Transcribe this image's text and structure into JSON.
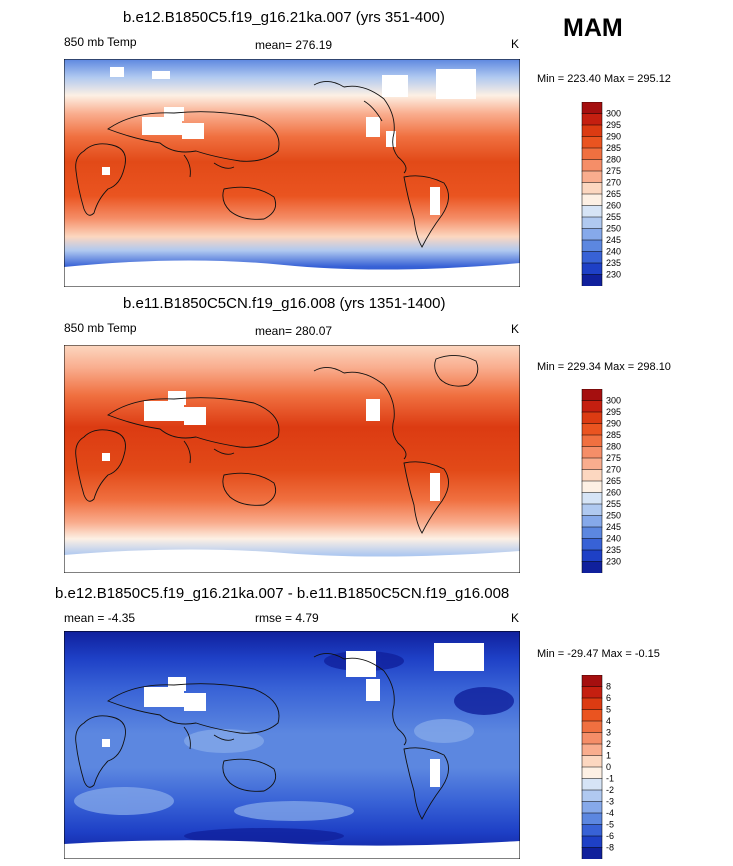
{
  "season": "MAM",
  "chart_data": [
    {
      "type": "heatmap",
      "title": "b.e12.B1850C5.f19_g16.21ka.007 (yrs 351-400)",
      "variable": "850 mb Temp",
      "mean_label": "mean= 276.19",
      "units": "K",
      "minmax_label": "Min = 223.40 Max = 295.12",
      "min": 223.4,
      "max": 295.12,
      "colorbar_levels": [
        "300",
        "295",
        "290",
        "285",
        "280",
        "275",
        "270",
        "265",
        "260",
        "255",
        "250",
        "245",
        "240",
        "235",
        "230"
      ],
      "colorbar_colors": [
        "#a50f0f",
        "#c51f10",
        "#dc3b12",
        "#ea5420",
        "#f07040",
        "#f58e68",
        "#f9ad8e",
        "#fcd7c0",
        "#fdf0e4",
        "#d6e4f6",
        "#b0c9f0",
        "#86a9ea",
        "#5c87e0",
        "#3862d6",
        "#1e40c6",
        "#10209c"
      ],
      "anomaly": false
    },
    {
      "type": "heatmap",
      "title": "b.e11.B1850C5CN.f19_g16.008 (yrs 1351-1400)",
      "variable": "850 mb Temp",
      "mean_label": "mean= 280.07",
      "units": "K",
      "minmax_label": "Min = 229.34 Max = 298.10",
      "min": 229.34,
      "max": 298.1,
      "colorbar_levels": [
        "300",
        "295",
        "290",
        "285",
        "280",
        "275",
        "270",
        "265",
        "260",
        "255",
        "250",
        "245",
        "240",
        "235",
        "230"
      ],
      "colorbar_colors": [
        "#a50f0f",
        "#c51f10",
        "#dc3b12",
        "#ea5420",
        "#f07040",
        "#f58e68",
        "#f9ad8e",
        "#fcd7c0",
        "#fdf0e4",
        "#d6e4f6",
        "#b0c9f0",
        "#86a9ea",
        "#5c87e0",
        "#3862d6",
        "#1e40c6",
        "#10209c"
      ],
      "anomaly": false
    },
    {
      "type": "heatmap",
      "title": "b.e12.B1850C5.f19_g16.21ka.007 - b.e11.B1850C5CN.f19_g16.008",
      "variable": "",
      "mean_label": "mean =  -4.35",
      "rmse_label": "rmse =   4.79",
      "units": "K",
      "minmax_label": "Min = -29.47 Max =  -0.15",
      "min": -29.47,
      "max": -0.15,
      "colorbar_levels": [
        "8",
        "6",
        "5",
        "4",
        "3",
        "2",
        "1",
        "0",
        "-1",
        "-2",
        "-3",
        "-4",
        "-5",
        "-6",
        "-8"
      ],
      "colorbar_colors": [
        "#a50f0f",
        "#c51f10",
        "#dc3b12",
        "#ea5420",
        "#f07040",
        "#f58e68",
        "#f9ad8e",
        "#fcd7c0",
        "#fdf0e4",
        "#d6e4f6",
        "#b0c9f0",
        "#86a9ea",
        "#5c87e0",
        "#3862d6",
        "#1e40c6",
        "#10209c"
      ],
      "anomaly": true
    }
  ]
}
